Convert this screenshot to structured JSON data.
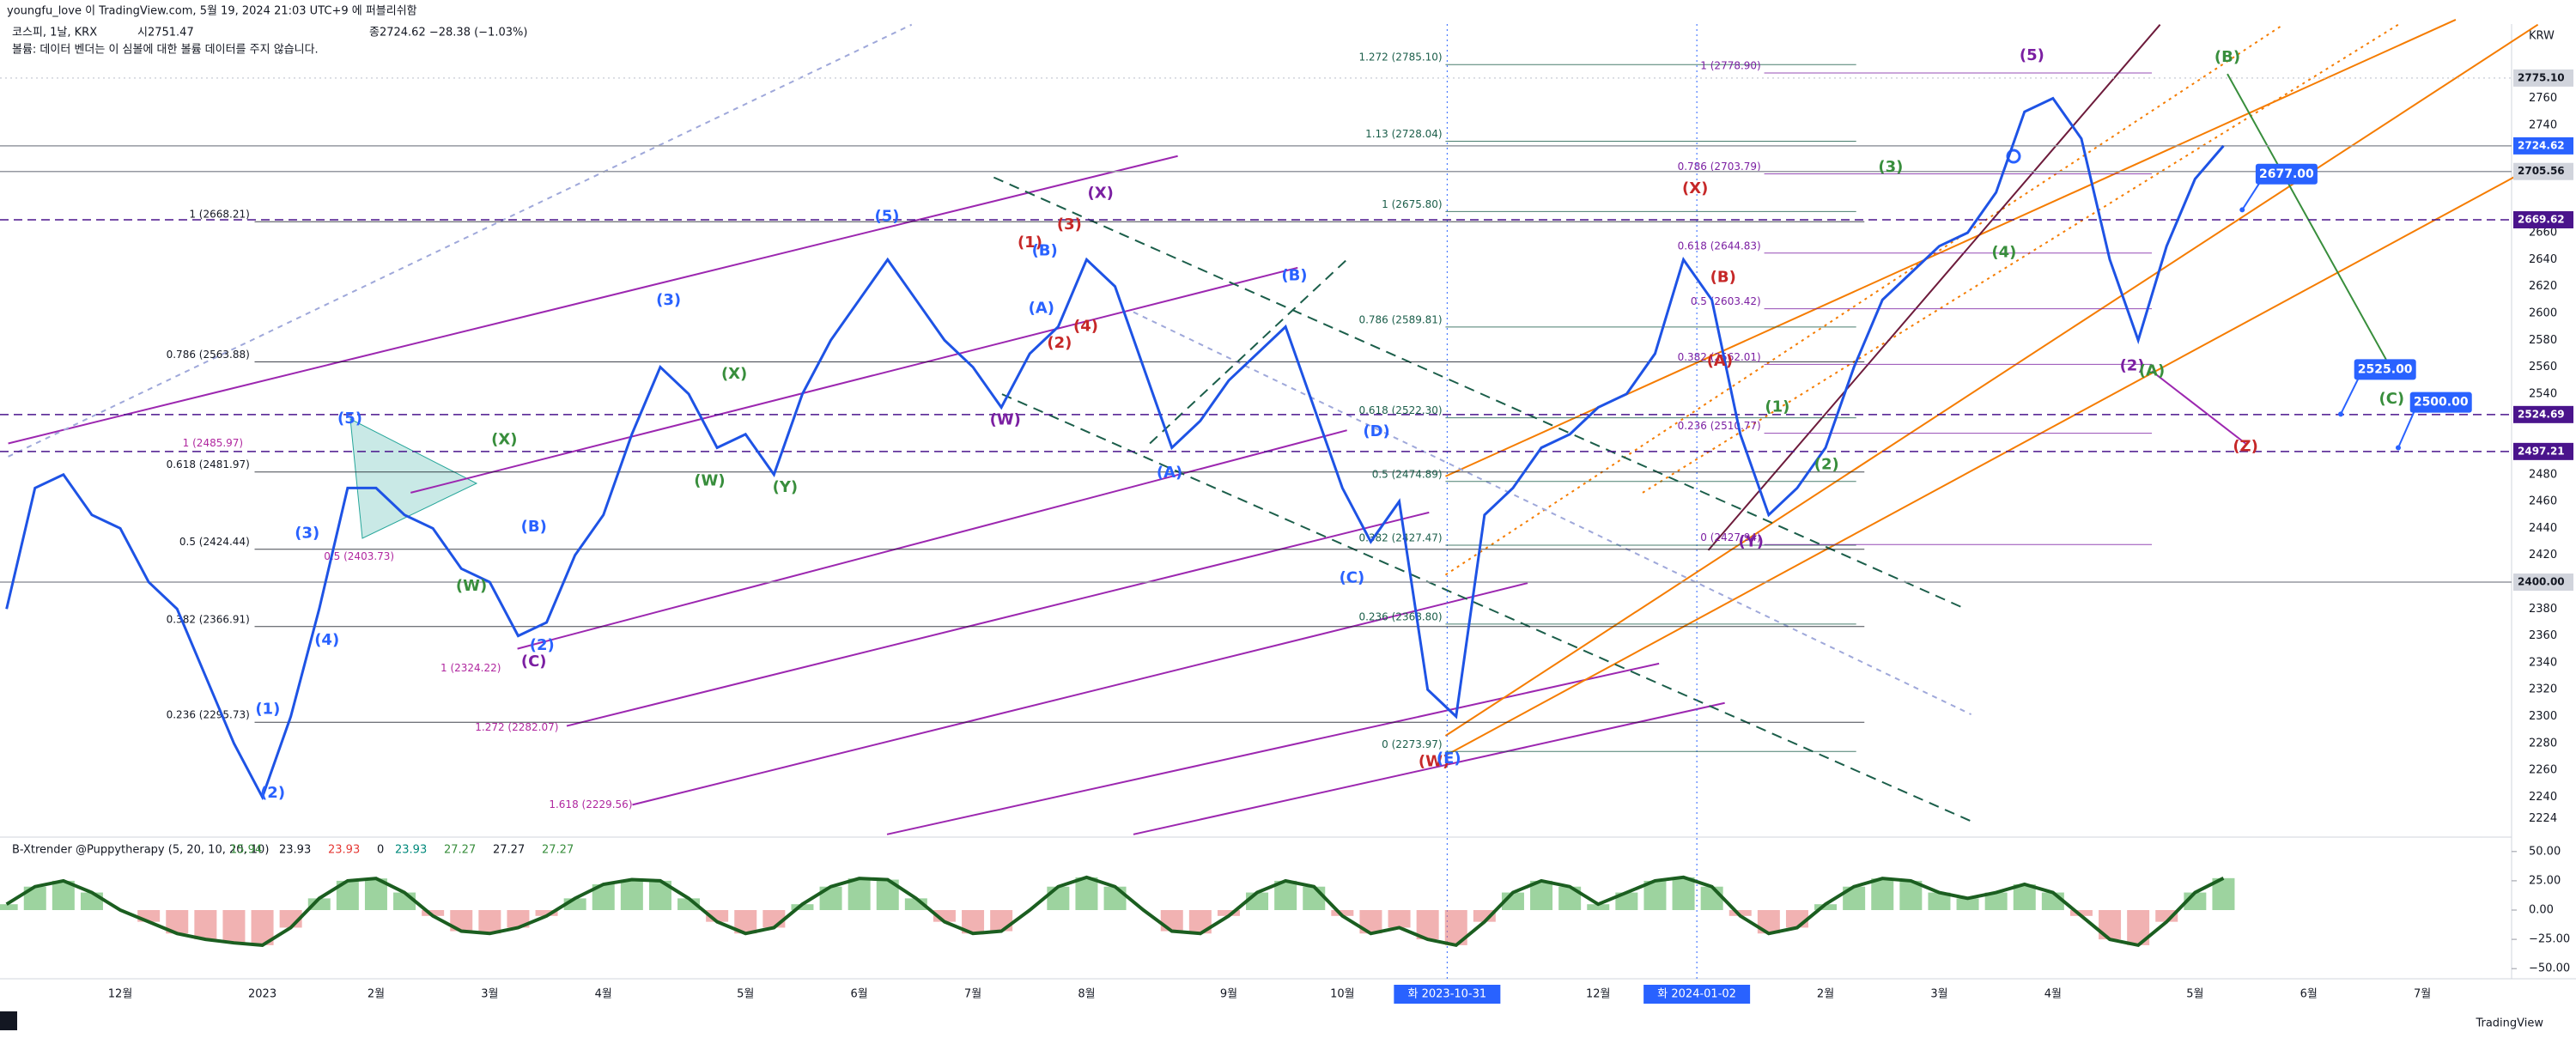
{
  "header": {
    "author_line": "youngfu_love 이 TradingView.com, 5월 19, 2024 21:03 UTC+9 에 퍼블리쉬함",
    "symbol": "코스피, 1날, KRX",
    "open": "시2751.47",
    "close": "종2724.62 −28.38 (−1.03%)",
    "volume_note": "볼륨: 데이터 벤더는 이 심볼에 대한 볼륨 데이터를 주지 않습니다."
  },
  "chart_data": [
    {
      "type": "line",
      "currency": "KRW",
      "color": "#1e53e5",
      "grid": false,
      "categories": [
        null,
        null,
        null,
        null,
        "12월",
        null,
        null,
        null,
        null,
        "2023",
        null,
        null,
        null,
        "2월",
        null,
        null,
        null,
        "3월",
        null,
        null,
        null,
        "4월",
        null,
        null,
        null,
        null,
        "5월",
        null,
        null,
        null,
        "6월",
        null,
        null,
        null,
        "7월",
        null,
        null,
        null,
        "8월",
        null,
        null,
        null,
        null,
        "9월",
        null,
        null,
        null,
        "10월",
        null,
        null,
        null,
        null,
        null,
        null,
        null,
        null,
        "12월",
        null,
        null,
        null,
        null,
        null,
        null,
        null,
        "2월",
        null,
        null,
        null,
        "3월",
        null,
        null,
        null,
        "4월",
        null,
        null,
        null,
        null,
        "5월",
        null,
        null,
        null,
        "6월",
        null,
        null,
        null,
        "7월",
        null,
        null
      ],
      "values": [
        2380,
        2470,
        2480,
        2450,
        2440,
        2400,
        2380,
        2330,
        2280,
        2240,
        2300,
        2380,
        2470,
        2470,
        2450,
        2440,
        2410,
        2400,
        2360,
        2370,
        2420,
        2450,
        2510,
        2560,
        2540,
        2500,
        2510,
        2480,
        2540,
        2580,
        2610,
        2640,
        2610,
        2580,
        2560,
        2530,
        2570,
        2590,
        2640,
        2620,
        2560,
        2500,
        2520,
        2550,
        2570,
        2590,
        2530,
        2470,
        2430,
        2460,
        2320,
        2300,
        2450,
        2470,
        2500,
        2510,
        2530,
        2540,
        2570,
        2640,
        2610,
        2510,
        2450,
        2470,
        2500,
        2560,
        2610,
        2630,
        2650,
        2660,
        2690,
        2750,
        2760,
        2730,
        2640,
        2580,
        2650,
        2700,
        2724.62,
        null,
        null,
        null,
        null,
        null,
        null,
        null,
        null,
        null
      ],
      "ylim": [
        2216,
        2814
      ],
      "yticks": [
        2224,
        2240,
        2260,
        2280,
        2300,
        2320,
        2340,
        2360,
        2380,
        2420,
        2440,
        2460,
        2480,
        2540,
        2560,
        2580,
        2600,
        2620,
        2640,
        2660,
        2740,
        2760
      ],
      "x_highlights": [
        {
          "label": "화 2023-10-31"
        },
        {
          "label": "화 2024-01-02"
        }
      ],
      "price_tags": [
        {
          "value": 2775.1,
          "label": "2775.10",
          "color": "#d1d4dc",
          "text_color": "#131722",
          "line": "dotted"
        },
        {
          "value": 2724.62,
          "label": "2724.62",
          "color": "#2962ff",
          "text_color": "#ffffff",
          "line": "solid"
        },
        {
          "value": 2705.56,
          "label": "2705.56",
          "color": "#d1d4dc",
          "text_color": "#131722",
          "line": "solid"
        },
        {
          "value": 2669.62,
          "label": "2669.62",
          "color": "#4a148c",
          "text_color": "#ffffff",
          "line": "dashed"
        },
        {
          "value": 2524.69,
          "label": "2524.69",
          "color": "#4a148c",
          "text_color": "#ffffff",
          "line": "dashed"
        },
        {
          "value": 2497.21,
          "label": "2497.21",
          "color": "#4a148c",
          "text_color": "#ffffff",
          "line": "dashed"
        },
        {
          "value": 2400,
          "label": "2400.00",
          "color": "#d1d4dc",
          "text_color": "#131722",
          "line": "solid"
        }
      ],
      "targets": [
        {
          "value": 2677,
          "label": "2677.00"
        },
        {
          "value": 2525,
          "label": "2525.00"
        },
        {
          "value": 2500,
          "label": "2500.00"
        }
      ],
      "fib_levels": [
        {
          "label": "1 (2668.21)",
          "value": 2668.21,
          "color": "#131722"
        },
        {
          "label": "0.786 (2563.88)",
          "value": 2563.88,
          "color": "#131722"
        },
        {
          "label": "0.618 (2481.97)",
          "value": 2481.97,
          "color": "#131722"
        },
        {
          "label": "0.5 (2424.44)",
          "value": 2424.44,
          "color": "#131722"
        },
        {
          "label": "0.382 (2366.91)",
          "value": 2366.91,
          "color": "#131722"
        },
        {
          "label": "0.236 (2295.73)",
          "value": 2295.73,
          "color": "#131722"
        },
        {
          "label": "1.272 (2785.10)",
          "value": 2785.1,
          "color": "#1b5e4a"
        },
        {
          "label": "1.13 (2728.04)",
          "value": 2728.04,
          "color": "#1b5e4a"
        },
        {
          "label": "1 (2675.80)",
          "value": 2675.8,
          "color": "#1b5e4a"
        },
        {
          "label": "0.786 (2589.81)",
          "value": 2589.81,
          "color": "#1b5e4a"
        },
        {
          "label": "0.618 (2522.30)",
          "value": 2522.3,
          "color": "#1b5e4a"
        },
        {
          "label": "0.5 (2474.89)",
          "value": 2474.89,
          "color": "#1b5e4a"
        },
        {
          "label": "0.382 (2427.47)",
          "value": 2427.47,
          "color": "#1b5e4a"
        },
        {
          "label": "0.236 (2368.80)",
          "value": 2368.8,
          "color": "#1b5e4a"
        },
        {
          "label": "0 (2273.97)",
          "value": 2273.97,
          "color": "#1b5e4a"
        },
        {
          "label": "1 (2778.90)",
          "value": 2778.9,
          "color": "#7b1fa2"
        },
        {
          "label": "0.786 (2703.79)",
          "value": 2703.79,
          "color": "#7b1fa2"
        },
        {
          "label": "0.618 (2644.83)",
          "value": 2644.83,
          "color": "#7b1fa2"
        },
        {
          "label": "0.5 (2603.42)",
          "value": 2603.42,
          "color": "#7b1fa2"
        },
        {
          "label": "0.382 (2562.01)",
          "value": 2562.01,
          "color": "#7b1fa2"
        },
        {
          "label": "0.236 (2510.77)",
          "value": 2510.77,
          "color": "#7b1fa2"
        },
        {
          "label": "0 (2427.94)",
          "value": 2427.94,
          "color": "#7b1fa2"
        }
      ],
      "channel_labels": [
        {
          "text": "1 (2485.97)",
          "color": "#b0279f"
        },
        {
          "text": "0.5 (2403.73)",
          "color": "#b0279f"
        },
        {
          "text": "1 (2324.22)",
          "color": "#b0279f"
        },
        {
          "text": "1.272 (2282.07)",
          "color": "#b0279f"
        },
        {
          "text": "1.618 (2229.56)",
          "color": "#b0279f"
        }
      ],
      "wave_labels": [
        {
          "text": "(5)",
          "color": "#2962ff"
        },
        {
          "text": "(3)",
          "color": "#2962ff"
        },
        {
          "text": "(4)",
          "color": "#2962ff"
        },
        {
          "text": "(1)",
          "color": "#2962ff"
        },
        {
          "text": "(2)",
          "color": "#2962ff"
        },
        {
          "text": "(X)",
          "color": "#388e3c"
        },
        {
          "text": "(W)",
          "color": "#388e3c"
        },
        {
          "text": "(B)",
          "color": "#2962ff"
        },
        {
          "text": "(2)",
          "color": "#2962ff"
        },
        {
          "text": "(C)",
          "color": "#7b1fa2"
        },
        {
          "text": "(3)",
          "color": "#2962ff"
        },
        {
          "text": "(X)",
          "color": "#388e3c"
        },
        {
          "text": "(W)",
          "color": "#388e3c"
        },
        {
          "text": "(Y)",
          "color": "#388e3c"
        },
        {
          "text": "(5)",
          "color": "#2962ff"
        },
        {
          "text": "(W)",
          "color": "#7b1fa2"
        },
        {
          "text": "(1)",
          "color": "#c62828"
        },
        {
          "text": "(A)",
          "color": "#2962ff"
        },
        {
          "text": "(B)",
          "color": "#2962ff"
        },
        {
          "text": "(2)",
          "color": "#c62828"
        },
        {
          "text": "(3)",
          "color": "#c62828"
        },
        {
          "text": "(4)",
          "color": "#c62828"
        },
        {
          "text": "(X)",
          "color": "#7b1fa2"
        },
        {
          "text": "(A)",
          "color": "#2962ff"
        },
        {
          "text": "(B)",
          "color": "#2962ff"
        },
        {
          "text": "(D)",
          "color": "#2962ff"
        },
        {
          "text": "(C)",
          "color": "#2962ff"
        },
        {
          "text": "(W)",
          "color": "#c62828"
        },
        {
          "text": "(E)",
          "color": "#2962ff"
        },
        {
          "text": "(X)",
          "color": "#c62828"
        },
        {
          "text": "(B)",
          "color": "#c62828"
        },
        {
          "text": "(A)",
          "color": "#c62828"
        },
        {
          "text": "(1)",
          "color": "#388e3c"
        },
        {
          "text": "(2)",
          "color": "#388e3c"
        },
        {
          "text": "(Y)",
          "color": "#7b1fa2"
        },
        {
          "text": "(3)",
          "color": "#388e3c"
        },
        {
          "text": "(4)",
          "color": "#388e3c"
        },
        {
          "text": "(5)",
          "color": "#7b1fa2"
        },
        {
          "text": "(2)",
          "color": "#7b1fa2"
        },
        {
          "text": "(A)",
          "color": "#388e3c"
        },
        {
          "text": "(B)",
          "color": "#388e3c"
        },
        {
          "text": "(C)",
          "color": "#388e3c"
        },
        {
          "text": "(Z)",
          "color": "#c62828"
        }
      ]
    },
    {
      "type": "oscillator",
      "title": "B-Xtrender @Puppytherapy (5, 20, 10, 20, 10)",
      "color": "#1b5e20",
      "histogram": true,
      "legend_values": [
        {
          "text": "15.94",
          "color": "#388e3c"
        },
        {
          "text": "23.93",
          "color": "#131722"
        },
        {
          "text": "23.93",
          "color": "#e53935"
        },
        {
          "text": "0",
          "color": "#131722"
        },
        {
          "text": "23.93",
          "color": "#00897b"
        },
        {
          "text": "27.27",
          "color": "#388e3c"
        },
        {
          "text": "27.27",
          "color": "#131722"
        },
        {
          "text": "27.27",
          "color": "#388e3c"
        }
      ],
      "values": [
        5,
        20,
        25,
        15,
        0,
        -10,
        -20,
        -25,
        -28,
        -30,
        -15,
        10,
        25,
        27,
        15,
        -5,
        -18,
        -20,
        -15,
        -5,
        10,
        22,
        26,
        25,
        10,
        -10,
        -20,
        -15,
        5,
        20,
        27,
        26,
        10,
        -10,
        -20,
        -18,
        0,
        20,
        28,
        20,
        0,
        -18,
        -20,
        -5,
        15,
        25,
        20,
        -5,
        -20,
        -15,
        -25,
        -30,
        -10,
        15,
        25,
        20,
        5,
        15,
        25,
        28,
        20,
        -5,
        -20,
        -15,
        5,
        20,
        27,
        25,
        15,
        10,
        15,
        22,
        15,
        -5,
        -25,
        -30,
        -10,
        15,
        27.27,
        null,
        null,
        null,
        null,
        null,
        null,
        null,
        null,
        null
      ],
      "ylim": [
        -55,
        55
      ],
      "yticks": [
        {
          "value": 50,
          "label": "50.00"
        },
        {
          "value": 25,
          "label": "25.00"
        },
        {
          "value": 0,
          "label": "0.00"
        },
        {
          "value": -25,
          "label": "−25.00"
        },
        {
          "value": -50,
          "label": "−50.00"
        }
      ]
    }
  ],
  "footer": {
    "logo": "TradingView"
  }
}
